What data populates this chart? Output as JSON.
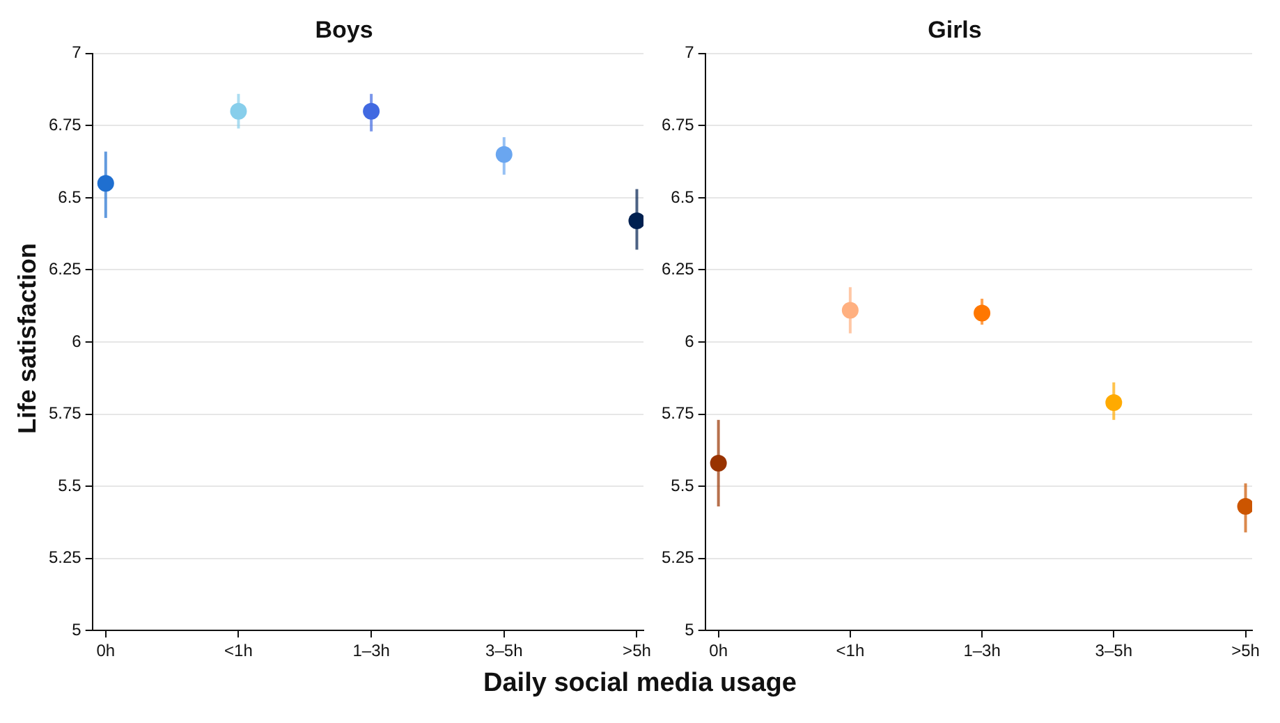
{
  "chart_data": [
    {
      "type": "scatter",
      "title": "Boys",
      "xlabel": "Daily social media usage",
      "ylabel": "Life satisfaction",
      "categories": [
        "0h",
        "<1h",
        "1–3h",
        "3–5h",
        ">5h"
      ],
      "values": [
        6.55,
        6.8,
        6.8,
        6.65,
        6.42
      ],
      "colors": [
        "#1f6fd0",
        "#87ceeb",
        "#4169e1",
        "#6aa6f0",
        "#002050"
      ],
      "errors": [
        [
          6.43,
          6.66
        ],
        [
          6.74,
          6.86
        ],
        [
          6.73,
          6.86
        ],
        [
          6.58,
          6.71
        ],
        [
          6.32,
          6.53
        ]
      ],
      "ylim": [
        5,
        7
      ],
      "yticks": [
        5,
        5.25,
        5.5,
        5.75,
        6,
        6.25,
        6.5,
        6.75,
        7
      ],
      "grid": "y",
      "legend": false,
      "marker": "circle"
    },
    {
      "type": "scatter",
      "title": "Girls",
      "categories": [
        "0h",
        "<1h",
        "1–3h",
        "3–5h",
        ">5h"
      ],
      "values": [
        5.58,
        6.11,
        6.1,
        5.79,
        5.43
      ],
      "colors": [
        "#993300",
        "#ffb080",
        "#ff7700",
        "#ffaa00",
        "#cc5500"
      ],
      "errors": [
        [
          5.43,
          5.73
        ],
        [
          6.03,
          6.19
        ],
        [
          6.06,
          6.15
        ],
        [
          5.73,
          5.86
        ],
        [
          5.34,
          5.51
        ]
      ],
      "ylim": [
        5,
        7
      ],
      "yticks": [
        5,
        5.25,
        5.5,
        5.75,
        6,
        6.25,
        6.5,
        6.75,
        7
      ],
      "grid": "y",
      "legend": false,
      "marker": "circle"
    }
  ]
}
